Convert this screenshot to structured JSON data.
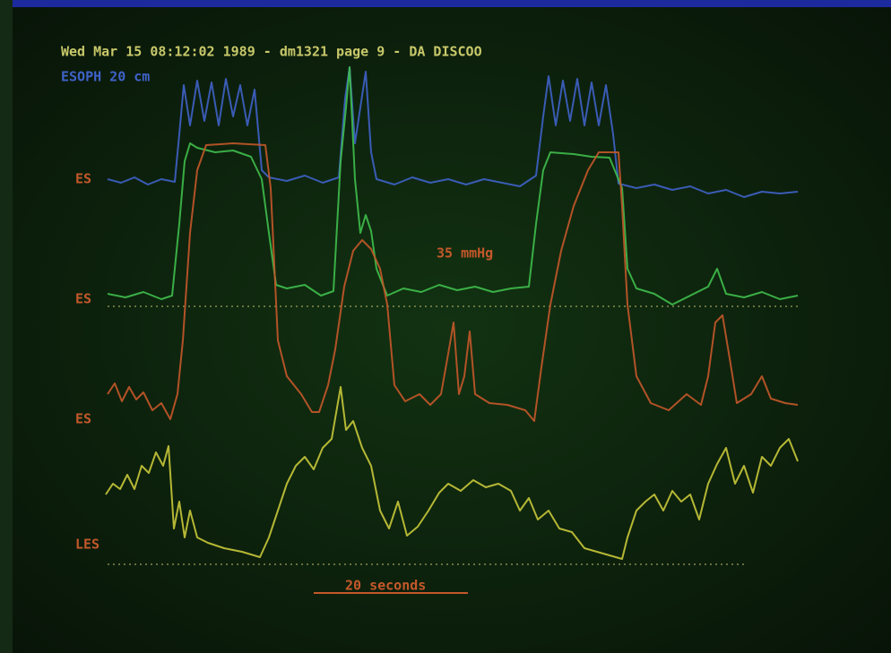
{
  "screen": {
    "header": "Wed Mar 15 08:12:02 1989 - dm1321 page 9 - DA DISCOO",
    "channel_note": "ESOPH 20 cm",
    "labels": [
      "ES",
      "ES",
      "ES",
      "LES"
    ],
    "scale_note": "35 mmHg",
    "time_note": "20 seconds"
  }
}
